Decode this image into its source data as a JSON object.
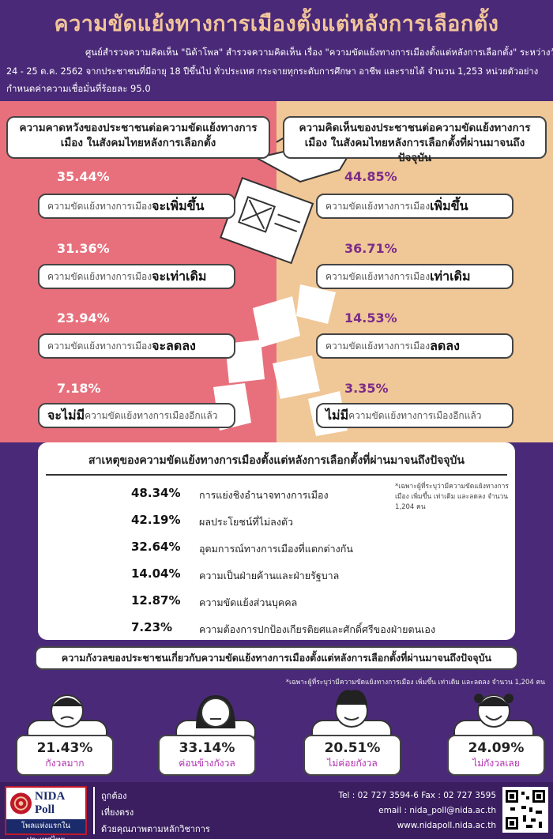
{
  "header": {
    "title": "ความขัดแย้งทางการเมืองตั้งแต่หลังการเลือกตั้ง",
    "line1": "ศูนย์สำรวจความคิดเห็น \"นิด้าโพล\" สำรวจความคิดเห็น เรื่อง \"ความขัดแย้งทางการเมืองตั้งแต่หลังการเลือกตั้ง\" ระหว่างวันที่",
    "line2": "24 - 25 ต.ค. 2562 จากประชาชนที่มีอายุ 18 ปีขึ้นไป ทั่วประเทศ กระจายทุกระดับการศึกษา อาชีพ และรายได้ จำนวน 1,253 หน่วยตัวอย่าง",
    "line3": "กำหนดค่าความเชื่อมั่นที่ร้อยละ 95.0"
  },
  "left": {
    "question": "ความคาดหวังของประชาชนต่อความขัดแย้งทางการเมือง ในสังคมไทยหลังการเลือกตั้ง",
    "items": [
      {
        "pct": "35.44%",
        "pre": "ความขัดแย้งทางการเมือง",
        "bold": "จะเพิ่มขึ้น",
        "post": "",
        "value": 35.44
      },
      {
        "pct": "31.36%",
        "pre": "ความขัดแย้งทางการเมือง",
        "bold": "จะเท่าเดิม",
        "post": "",
        "value": 31.36
      },
      {
        "pct": "23.94%",
        "pre": "ความขัดแย้งทางการเมือง",
        "bold": "จะลดลง",
        "post": "",
        "value": 23.94
      },
      {
        "pct": "7.18%",
        "pre": "",
        "bold": "จะไม่มี",
        "post": "ความขัดแย้งทางการเมืองอีกแล้ว",
        "value": 7.18
      }
    ]
  },
  "right": {
    "question": "ความคิดเห็นของประชาชนต่อความขัดแย้งทางการเมือง ในสังคมไทยหลังการเลือกตั้งที่ผ่านมาจนถึงปัจจุบัน",
    "items": [
      {
        "pct": "44.85%",
        "pre": "ความขัดแย้งทางการเมือง",
        "bold": "เพิ่มขึ้น",
        "post": "",
        "value": 44.85
      },
      {
        "pct": "36.71%",
        "pre": "ความขัดแย้งทางการเมือง",
        "bold": "เท่าเดิม",
        "post": "",
        "value": 36.71
      },
      {
        "pct": "14.53%",
        "pre": "ความขัดแย้งทางการเมือง",
        "bold": "ลดลง",
        "post": "",
        "value": 14.53
      },
      {
        "pct": "3.35%",
        "pre": "",
        "bold": "ไม่มี",
        "post": "ความขัดแย้งทางการเมืองอีกแล้ว",
        "value": 3.35
      }
    ]
  },
  "causes": {
    "title": "สาเหตุของความขัดแย้งทางการเมืองตั้งแต่หลังการเลือกตั้งที่ผ่านมาจนถึงปัจจุบัน",
    "note": "*เฉพาะผู้ที่ระบุว่ามีความขัดแย้งทางการเมือง เพิ่มขึ้น เท่าเดิม และลดลง จำนวน 1,204 คน",
    "items": [
      {
        "pct": "48.34%",
        "label": "การแย่งชิงอำนาจทางการเมือง"
      },
      {
        "pct": "42.19%",
        "label": "ผลประโยชน์ที่ไม่ลงตัว"
      },
      {
        "pct": "32.64%",
        "label": "อุดมการณ์ทางการเมืองที่แตกต่างกัน"
      },
      {
        "pct": "14.04%",
        "label": "ความเป็นฝ่ายค้านและฝ่ายรัฐบาล"
      },
      {
        "pct": "12.87%",
        "label": "ความขัดแย้งส่วนบุคคล"
      },
      {
        "pct": "7.23%",
        "label": "ความต้องการปกป้องเกียรติยศและศักดิ์ศรีของฝ่ายตนเอง"
      }
    ]
  },
  "worry": {
    "title": "ความกังวลของประชาชนเกี่ยวกับความขัดแย้งทางการเมืองตั้งแต่หลังการเลือกตั้งที่ผ่านมาจนถึงปัจจุบัน",
    "note": "*เฉพาะผู้ที่ระบุว่ามีความขัดแย้งทางการเมือง เพิ่มขึ้น เท่าเดิม และลดลง จำนวน 1,204 คน",
    "items": [
      {
        "pct": "21.43%",
        "label": "กังวลมาก"
      },
      {
        "pct": "33.14%",
        "label": "ค่อนข้างกังวล"
      },
      {
        "pct": "20.51%",
        "label": "ไม่ค่อยกังวล"
      },
      {
        "pct": "24.09%",
        "label": "ไม่กังวลเลย"
      }
    ]
  },
  "footer": {
    "logo_text": "NIDA Poll",
    "logo_tagline": "โพลแห่งแรกในประเทศไทย",
    "motto1": "ถูกต้อง",
    "motto2": "เที่ยงตรง",
    "motto3": "ด้วยคุณภาพตามหลักวิชาการ",
    "tel": "Tel : 02 727 3594-6 Fax : 02 727 3595",
    "email": "email : nida_poll@nida.ac.th",
    "web": "www.nidapoll.nida.ac.th"
  },
  "colors": {
    "left_bg": "#e8707c",
    "right_bg": "#f0c797",
    "header_bg": "#4a2a78",
    "title": "#f2c49a",
    "accent": "#b02fb0"
  }
}
